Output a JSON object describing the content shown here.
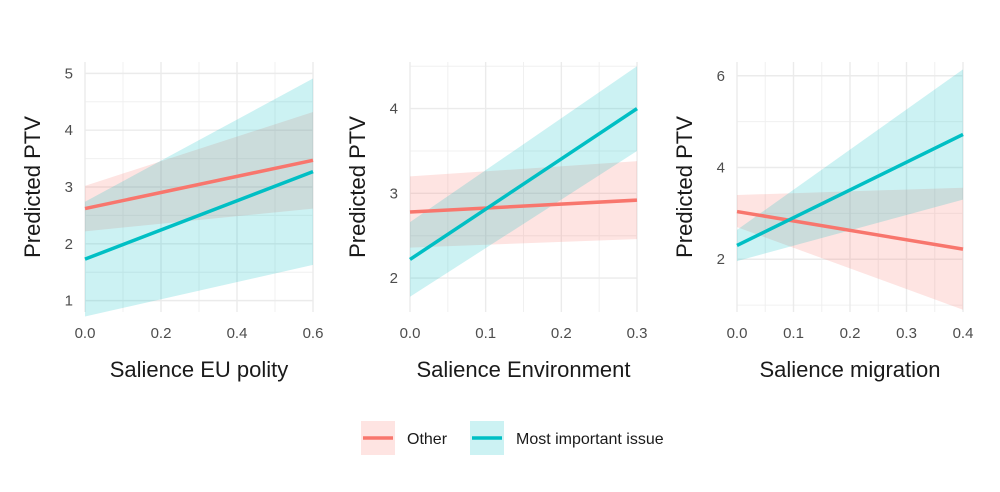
{
  "chart_data": [
    {
      "type": "line",
      "xlabel": "Salience EU polity",
      "ylabel": "Predicted PTV",
      "xlim": [
        0,
        0.6
      ],
      "ylim": [
        0.8,
        5.2
      ],
      "xticks": [
        0,
        0.2,
        0.4,
        0.6
      ],
      "xtick_labels": [
        "0.0",
        "0.2",
        "0.4",
        "0.6"
      ],
      "yticks": [
        1,
        2,
        3,
        4,
        5
      ],
      "ytick_labels": [
        "1",
        "2",
        "3",
        "4",
        "5"
      ],
      "grid": true,
      "series": [
        {
          "name": "Other",
          "color": "#f8766d",
          "x": [
            0,
            0.6
          ],
          "y": [
            2.62,
            3.47
          ],
          "lower": [
            2.22,
            2.62
          ],
          "upper": [
            3.02,
            4.32
          ]
        },
        {
          "name": "Most important issue",
          "color": "#00bfc4",
          "x": [
            0,
            0.6
          ],
          "y": [
            1.73,
            3.27
          ],
          "lower": [
            0.72,
            1.63
          ],
          "upper": [
            2.74,
            4.91
          ]
        }
      ]
    },
    {
      "type": "line",
      "xlabel": "Salience Environment",
      "ylabel": "Predicted PTV",
      "xlim": [
        0,
        0.3
      ],
      "ylim": [
        1.6,
        4.55
      ],
      "xticks": [
        0,
        0.1,
        0.2,
        0.3
      ],
      "xtick_labels": [
        "0.0",
        "0.1",
        "0.2",
        "0.3"
      ],
      "yticks": [
        2,
        3,
        4
      ],
      "ytick_labels": [
        "2",
        "3",
        "4"
      ],
      "grid": true,
      "series": [
        {
          "name": "Other",
          "color": "#f8766d",
          "x": [
            0,
            0.3
          ],
          "y": [
            2.78,
            2.92
          ],
          "lower": [
            2.36,
            2.46
          ],
          "upper": [
            3.2,
            3.38
          ]
        },
        {
          "name": "Most important issue",
          "color": "#00bfc4",
          "x": [
            0,
            0.3
          ],
          "y": [
            2.22,
            4.0
          ],
          "lower": [
            1.78,
            3.5
          ],
          "upper": [
            2.66,
            4.5
          ]
        }
      ]
    },
    {
      "type": "line",
      "xlabel": "Salience migration",
      "ylabel": "Predicted PTV",
      "xlim": [
        0,
        0.4
      ],
      "ylim": [
        0.85,
        6.3
      ],
      "xticks": [
        0,
        0.1,
        0.2,
        0.3,
        0.4
      ],
      "xtick_labels": [
        "0.0",
        "0.1",
        "0.2",
        "0.3",
        "0.4"
      ],
      "yticks": [
        2,
        4,
        6
      ],
      "ytick_labels": [
        "2",
        "4",
        "6"
      ],
      "grid": true,
      "series": [
        {
          "name": "Other",
          "color": "#f8766d",
          "x": [
            0,
            0.4
          ],
          "y": [
            3.04,
            2.22
          ],
          "lower": [
            2.7,
            0.9
          ],
          "upper": [
            3.4,
            3.56
          ]
        },
        {
          "name": "Most important issue",
          "color": "#00bfc4",
          "x": [
            0,
            0.4
          ],
          "y": [
            2.3,
            4.72
          ],
          "lower": [
            1.96,
            3.3
          ],
          "upper": [
            2.64,
            6.14
          ]
        }
      ]
    }
  ],
  "legend": {
    "position": "bottom",
    "items": [
      {
        "label": "Other",
        "color": "#f8766d"
      },
      {
        "label": "Most important issue",
        "color": "#00bfc4"
      }
    ]
  }
}
